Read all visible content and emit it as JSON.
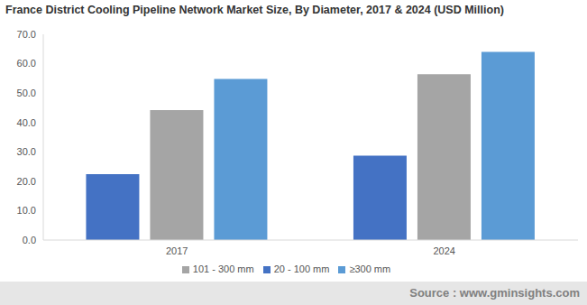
{
  "chart_data": {
    "type": "bar",
    "title": "France District Cooling Pipeline Network Market Size, By Diameter, 2017 & 2024 (USD Million)",
    "source": "Source : www.gminsights.com",
    "categories": [
      "2017",
      "2024"
    ],
    "series": [
      {
        "name": "20 - 100 mm",
        "color": "#4472c4",
        "values": [
          22.4,
          28.7
        ]
      },
      {
        "name": "101 - 300 mm",
        "color": "#a5a5a5",
        "values": [
          44.2,
          56.4
        ]
      },
      {
        "name": "≥300 mm",
        "color": "#5b9bd5",
        "values": [
          54.8,
          64.0
        ]
      }
    ],
    "ylim": [
      0,
      70
    ],
    "yticks": [
      {
        "value": 0,
        "label": "0.0"
      },
      {
        "value": 10,
        "label": "10.0"
      },
      {
        "value": 20,
        "label": "20.0"
      },
      {
        "value": 30,
        "label": "30.0"
      },
      {
        "value": 40,
        "label": "40.0"
      },
      {
        "value": 50,
        "label": "50.0"
      },
      {
        "value": 60,
        "label": "60.0"
      },
      {
        "value": 70,
        "label": "70.0"
      }
    ],
    "grid": false,
    "legend": "bottom"
  }
}
